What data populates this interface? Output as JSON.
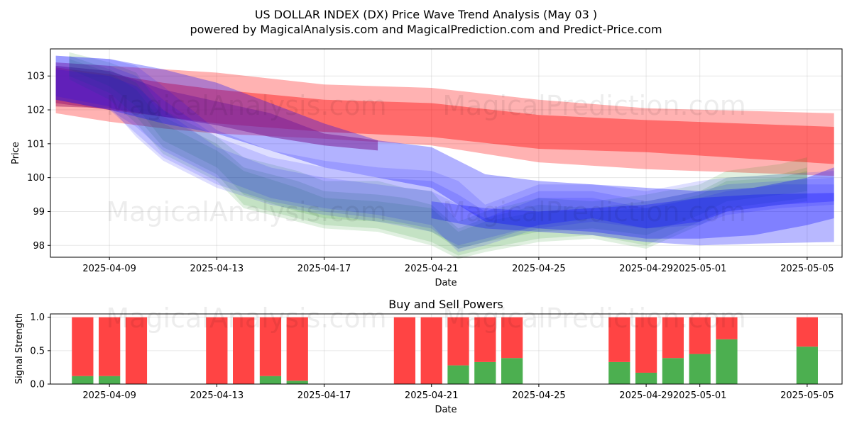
{
  "title": "US DOLLAR INDEX (DX) Price Wave Trend Analysis (May 03 )",
  "subtitle": "powered by MagicalAnalysis.com and MagicalPrediction.com and Predict-Price.com",
  "watermarks": [
    "MagicalAnalysis.com",
    "MagicalPrediction.com"
  ],
  "colors": {
    "red": "#ff0000",
    "green": "#008000",
    "blue": "#0000ff",
    "buy": "#4caf50",
    "sell": "#ff4444"
  },
  "chart_data": [
    {
      "type": "area",
      "title": "",
      "xlabel": "Date",
      "ylabel": "Price",
      "xlim": [
        -1.2,
        28.3
      ],
      "ylim": [
        97.65,
        103.8
      ],
      "x_ticks": [
        {
          "x": 1,
          "label": "2025-04-09"
        },
        {
          "x": 5,
          "label": "2025-04-13"
        },
        {
          "x": 9,
          "label": "2025-04-17"
        },
        {
          "x": 13,
          "label": "2025-04-21"
        },
        {
          "x": 17,
          "label": "2025-04-25"
        },
        {
          "x": 21,
          "label": "2025-04-29"
        },
        {
          "x": 23,
          "label": "2025-05-01"
        },
        {
          "x": 27,
          "label": "2025-05-05"
        }
      ],
      "y_ticks": [
        98,
        99,
        100,
        101,
        102,
        103
      ],
      "grid": true,
      "series": [
        {
          "name": "red-band-wide",
          "color": "red",
          "opacity": 0.3,
          "x": [
            -1,
            1,
            3,
            5,
            9,
            13,
            17,
            21,
            28
          ],
          "upper": [
            103.4,
            103.3,
            103.2,
            103.1,
            102.75,
            102.65,
            102.3,
            102.05,
            101.9
          ],
          "lower": [
            101.9,
            101.65,
            101.45,
            101.3,
            101.15,
            100.95,
            100.45,
            100.25,
            100.05
          ]
        },
        {
          "name": "red-band-core",
          "color": "red",
          "opacity": 0.4,
          "x": [
            -1,
            1,
            3,
            5,
            9,
            13,
            17,
            21,
            28
          ],
          "upper": [
            103.25,
            103.05,
            102.8,
            102.6,
            102.3,
            102.2,
            101.85,
            101.7,
            101.5
          ],
          "lower": [
            102.2,
            102.0,
            101.8,
            101.6,
            101.35,
            101.2,
            100.85,
            100.75,
            100.4
          ]
        },
        {
          "name": "purple-wave",
          "color": "#b0306a",
          "opacity": 0.55,
          "x": [
            -1,
            1,
            3,
            5,
            7,
            9,
            11
          ],
          "upper": [
            103.3,
            103.15,
            102.6,
            102.25,
            101.9,
            101.3,
            101.1
          ],
          "lower": [
            102.1,
            102.05,
            101.8,
            101.55,
            101.2,
            100.95,
            100.8
          ]
        },
        {
          "name": "green-wave-1",
          "color": "green",
          "opacity": 0.12,
          "x": [
            -0.5,
            1,
            2,
            3,
            5,
            6,
            8,
            9,
            11,
            12,
            13,
            14,
            15,
            17,
            19,
            21,
            23,
            24,
            26,
            27
          ],
          "upper": [
            103.7,
            103.4,
            103.1,
            102.0,
            101.2,
            100.6,
            100.2,
            99.9,
            99.9,
            99.7,
            99.6,
            98.7,
            99.0,
            99.4,
            99.3,
            99.5,
            99.8,
            100.2,
            100.4,
            100.6
          ],
          "lower": [
            103.2,
            102.7,
            102.1,
            101.1,
            100.3,
            99.5,
            99.0,
            98.8,
            98.7,
            98.6,
            98.4,
            97.9,
            98.1,
            98.4,
            98.5,
            98.3,
            98.9,
            99.3,
            99.5,
            99.6
          ]
        },
        {
          "name": "green-wave-2",
          "color": "green",
          "opacity": 0.12,
          "x": [
            -0.5,
            1,
            2,
            3,
            5,
            6,
            8,
            9,
            11,
            12,
            13,
            14,
            15,
            17,
            19,
            21,
            23,
            24,
            26,
            27
          ],
          "upper": [
            103.6,
            103.2,
            102.8,
            101.8,
            101.0,
            100.3,
            99.9,
            99.6,
            99.5,
            99.4,
            99.2,
            98.5,
            98.8,
            99.2,
            99.1,
            99.3,
            99.6,
            100.0,
            100.1,
            100.3
          ],
          "lower": [
            103.0,
            102.5,
            101.8,
            100.9,
            100.1,
            99.2,
            98.8,
            98.6,
            98.5,
            98.3,
            98.1,
            97.7,
            97.9,
            98.2,
            98.3,
            98.0,
            98.7,
            99.1,
            99.3,
            99.4
          ]
        },
        {
          "name": "green-wave-3",
          "color": "green",
          "opacity": 0.12,
          "x": [
            -0.5,
            1,
            2,
            3,
            5,
            6,
            8,
            9,
            11,
            12,
            13,
            14,
            15,
            17,
            19,
            21,
            23,
            24,
            26,
            27
          ],
          "upper": [
            103.5,
            103.1,
            102.6,
            101.6,
            100.8,
            100.2,
            99.7,
            99.4,
            99.3,
            99.2,
            99.1,
            98.4,
            98.7,
            99.0,
            99.0,
            99.1,
            99.5,
            99.9,
            100.0,
            100.2
          ],
          "lower": [
            102.9,
            102.3,
            101.6,
            100.7,
            99.9,
            99.1,
            98.7,
            98.5,
            98.4,
            98.2,
            98.0,
            97.6,
            97.8,
            98.1,
            98.2,
            97.9,
            98.6,
            99.0,
            99.2,
            99.3
          ]
        },
        {
          "name": "blue-wave-1",
          "color": "blue",
          "opacity": 0.13,
          "x": [
            -1,
            1,
            2,
            3,
            5,
            7,
            9,
            11,
            13,
            14,
            15,
            17,
            19,
            21,
            23,
            24,
            26,
            28
          ],
          "upper": [
            103.6,
            103.5,
            103.3,
            102.7,
            101.4,
            100.8,
            100.5,
            100.3,
            100.2,
            99.9,
            99.2,
            99.8,
            99.8,
            99.6,
            99.9,
            100.0,
            100.1,
            100.2
          ],
          "lower": [
            102.2,
            102.0,
            101.5,
            100.8,
            100.0,
            99.4,
            99.1,
            98.9,
            98.6,
            97.8,
            98.0,
            98.5,
            98.7,
            98.5,
            98.6,
            98.9,
            99.1,
            99.2
          ]
        },
        {
          "name": "blue-wave-2",
          "color": "blue",
          "opacity": 0.13,
          "x": [
            -1,
            1,
            2,
            3,
            5,
            7,
            9,
            11,
            13,
            14,
            15,
            17,
            19,
            21,
            23,
            24,
            26,
            28
          ],
          "upper": [
            103.4,
            103.3,
            103.0,
            102.3,
            101.2,
            100.6,
            100.3,
            100.0,
            99.9,
            99.5,
            99.0,
            99.6,
            99.6,
            99.3,
            99.6,
            99.8,
            99.9,
            100.0
          ],
          "lower": [
            102.3,
            102.0,
            101.3,
            100.6,
            99.8,
            99.3,
            99.0,
            98.8,
            98.5,
            97.9,
            98.1,
            98.6,
            98.8,
            98.5,
            98.7,
            99.0,
            99.2,
            99.3
          ]
        },
        {
          "name": "blue-wave-3",
          "color": "blue",
          "opacity": 0.13,
          "x": [
            -1,
            1,
            2,
            3,
            5,
            7,
            9,
            11,
            13,
            14,
            15,
            17,
            19,
            21,
            23,
            24,
            26,
            28
          ],
          "upper": [
            103.2,
            103.0,
            102.7,
            102.0,
            100.9,
            100.3,
            100.0,
            99.8,
            99.6,
            99.2,
            98.8,
            99.4,
            99.4,
            99.1,
            99.4,
            99.6,
            99.8,
            99.8
          ],
          "lower": [
            102.4,
            102.1,
            101.2,
            100.5,
            99.7,
            99.2,
            98.9,
            98.7,
            98.4,
            98.0,
            98.2,
            98.6,
            98.8,
            98.5,
            98.7,
            99.0,
            99.2,
            99.3
          ]
        },
        {
          "name": "blue-band-1",
          "color": "blue",
          "opacity": 0.3,
          "x": [
            -1,
            1,
            3,
            5,
            7,
            9,
            11,
            13,
            14,
            15,
            17,
            19,
            21,
            23,
            25,
            27,
            28
          ],
          "upper": [
            103.6,
            103.5,
            103.2,
            102.8,
            102.2,
            101.6,
            101.1,
            100.9,
            100.5,
            100.1,
            99.9,
            99.8,
            99.7,
            99.6,
            99.7,
            100.0,
            100.3
          ],
          "lower": [
            102.3,
            102.0,
            101.6,
            101.3,
            100.8,
            100.3,
            100.0,
            99.7,
            99.2,
            98.7,
            98.5,
            98.4,
            98.2,
            98.2,
            98.3,
            98.6,
            98.8
          ]
        },
        {
          "name": "blue-band-2",
          "color": "blue",
          "opacity": 0.28,
          "x": [
            13,
            15,
            17,
            19,
            21,
            23,
            25,
            28
          ],
          "upper": [
            99.3,
            99.1,
            99.0,
            99.1,
            99.2,
            99.4,
            99.5,
            99.55
          ],
          "lower": [
            98.8,
            98.5,
            98.4,
            98.3,
            98.1,
            98.0,
            98.05,
            98.1
          ]
        }
      ]
    },
    {
      "type": "bar",
      "title": "Buy and Sell Powers",
      "xlabel": "Date",
      "ylabel": "Signal Strength",
      "xlim": [
        -1.2,
        28.3
      ],
      "ylim": [
        0,
        1.05
      ],
      "y_ticks": [
        0.0,
        0.5,
        1.0
      ],
      "x_ticks": [
        {
          "x": 1,
          "label": "2025-04-09"
        },
        {
          "x": 5,
          "label": "2025-04-13"
        },
        {
          "x": 9,
          "label": "2025-04-17"
        },
        {
          "x": 13,
          "label": "2025-04-21"
        },
        {
          "x": 17,
          "label": "2025-04-25"
        },
        {
          "x": 21,
          "label": "2025-04-29"
        },
        {
          "x": 23,
          "label": "2025-05-01"
        },
        {
          "x": 27,
          "label": "2025-05-05"
        }
      ],
      "grid": true,
      "series": [
        {
          "name": "Buy",
          "color": "buy"
        },
        {
          "name": "Sell",
          "color": "sell"
        }
      ],
      "bars": [
        {
          "x": 0,
          "buy": 0.12
        },
        {
          "x": 1,
          "buy": 0.12
        },
        {
          "x": 2,
          "buy": 0.0
        },
        {
          "x": 5,
          "buy": 0.0
        },
        {
          "x": 6,
          "buy": 0.0
        },
        {
          "x": 7,
          "buy": 0.12
        },
        {
          "x": 8,
          "buy": 0.05
        },
        {
          "x": 12,
          "buy": 0.0
        },
        {
          "x": 13,
          "buy": 0.0
        },
        {
          "x": 14,
          "buy": 0.28
        },
        {
          "x": 15,
          "buy": 0.33
        },
        {
          "x": 16,
          "buy": 0.39
        },
        {
          "x": 20,
          "buy": 0.33
        },
        {
          "x": 21,
          "buy": 0.17
        },
        {
          "x": 22,
          "buy": 0.39
        },
        {
          "x": 23,
          "buy": 0.45
        },
        {
          "x": 24,
          "buy": 0.67
        },
        {
          "x": 27,
          "buy": 0.56
        }
      ]
    }
  ]
}
